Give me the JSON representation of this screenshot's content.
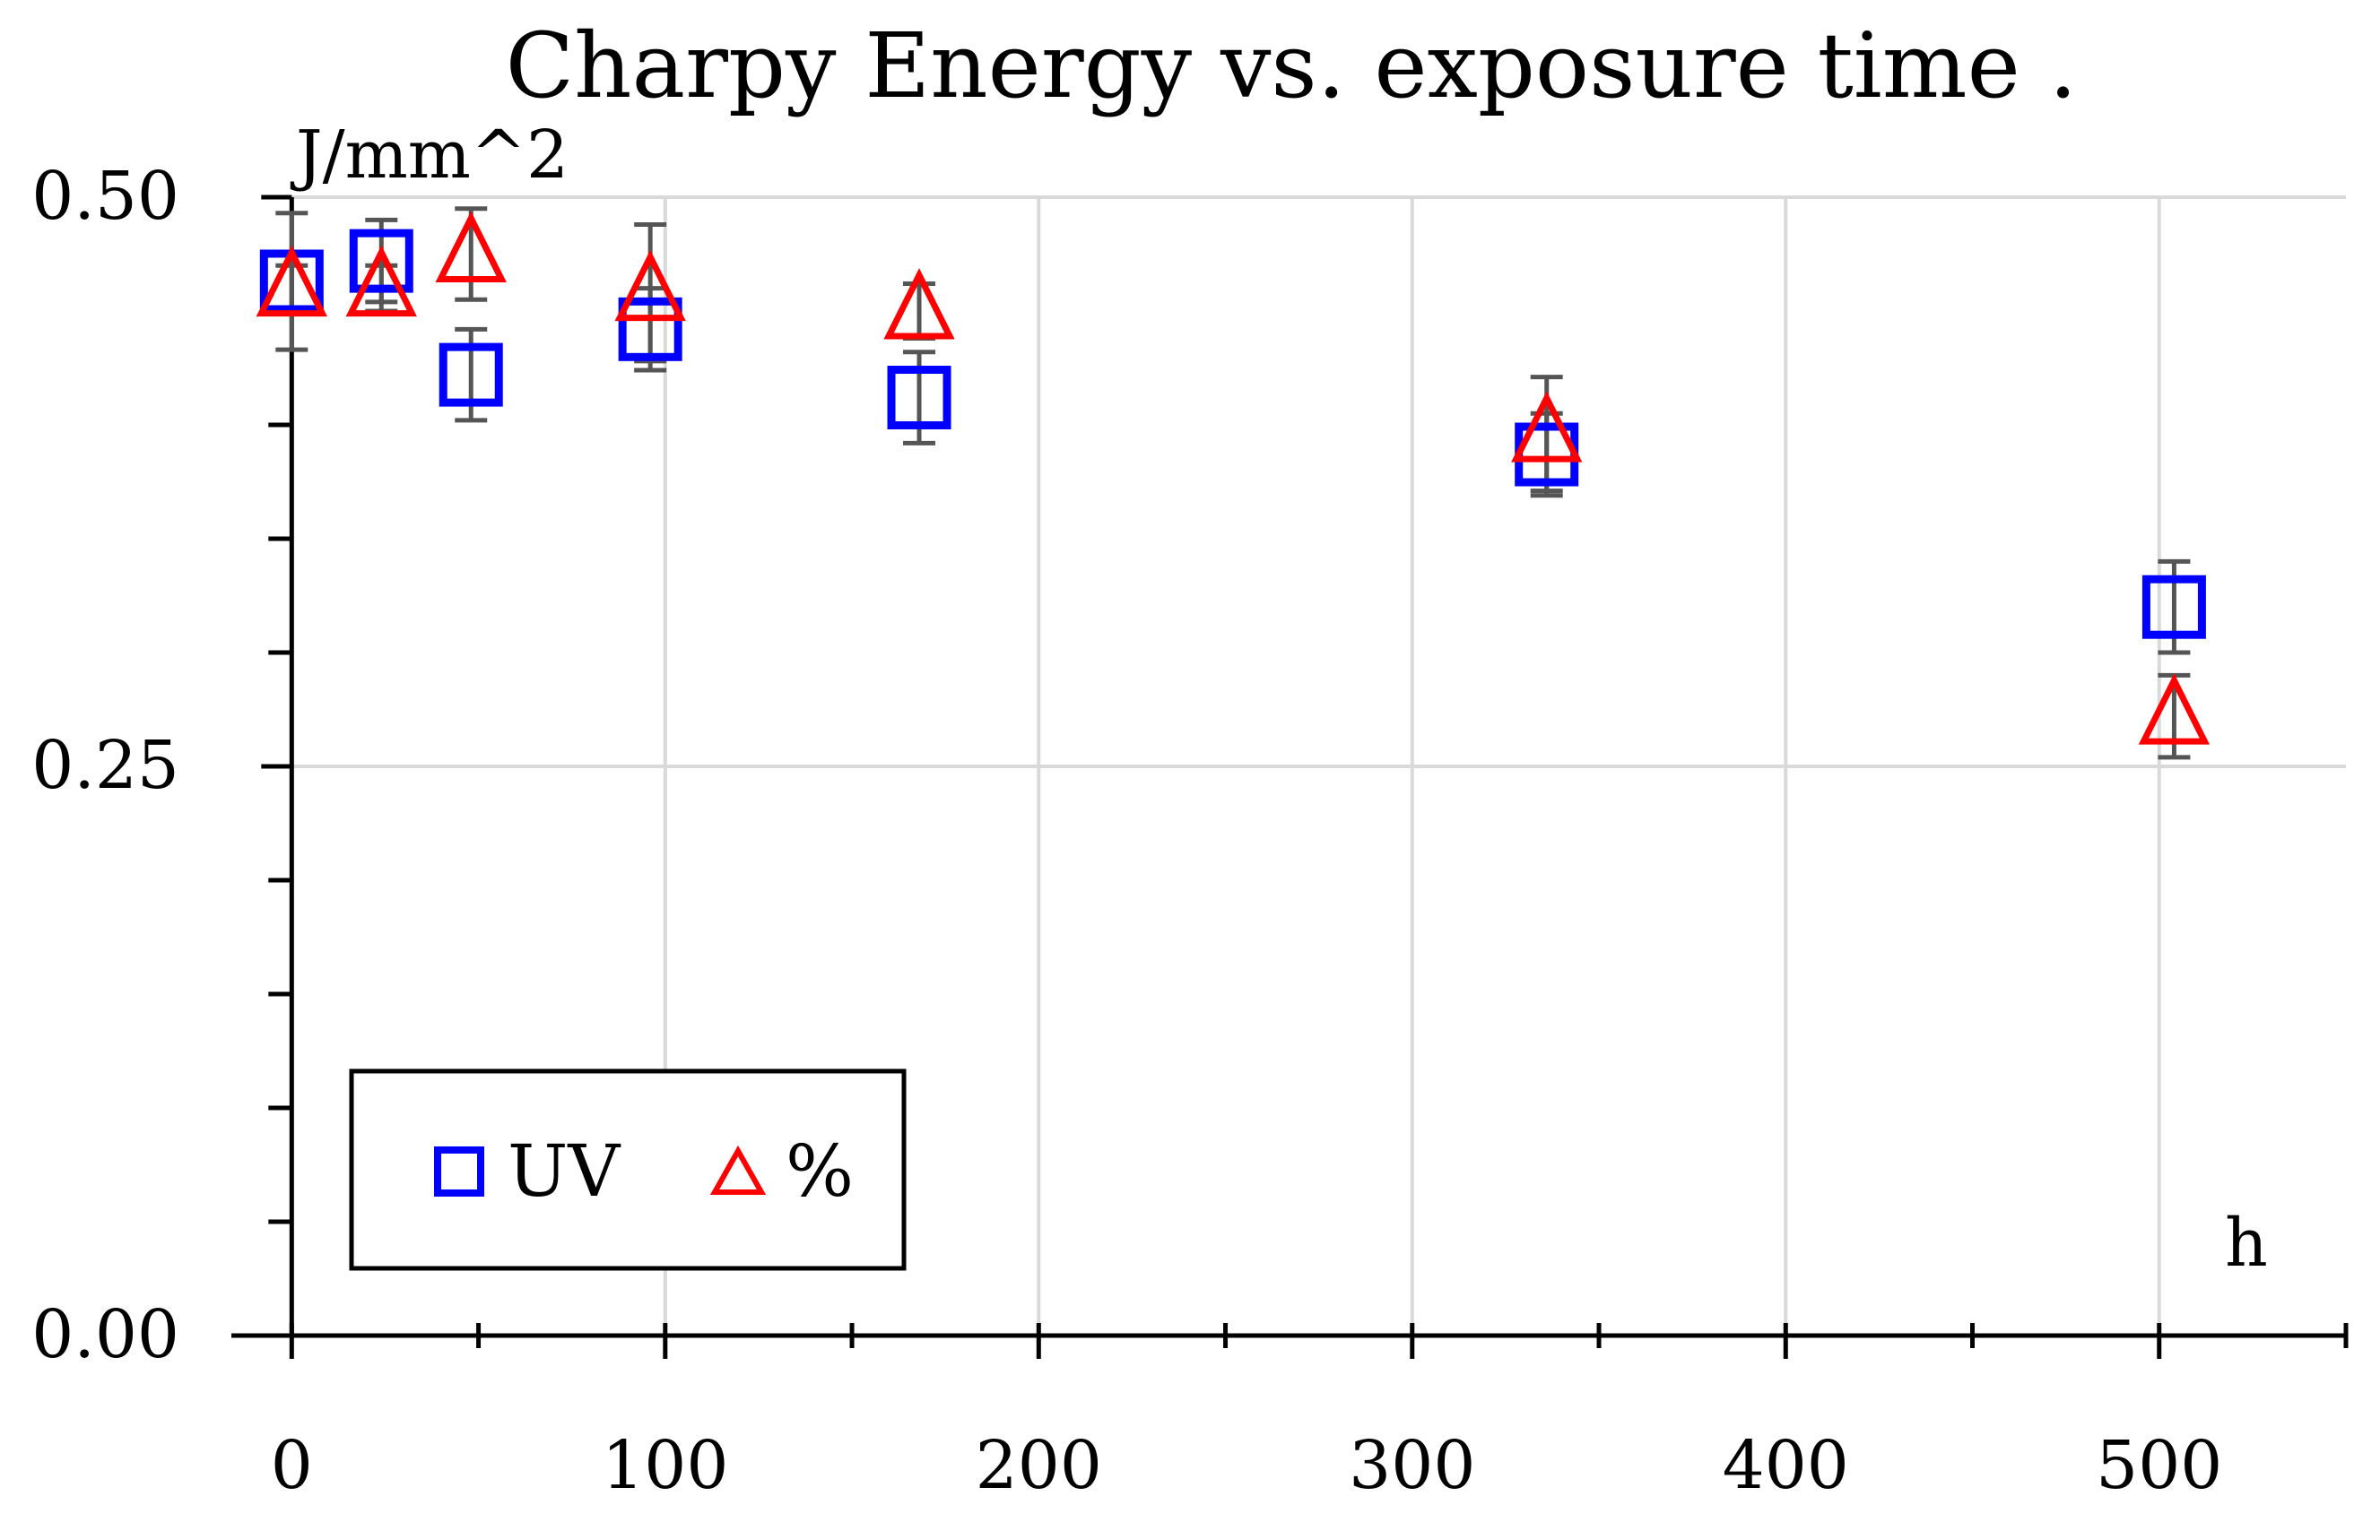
{
  "chart_data": {
    "type": "scatter",
    "title": "Charpy Energy vs. exposure time .",
    "xlabel": "h",
    "ylabel": "J/mm^2",
    "xlim": [
      -8,
      550
    ],
    "ylim": [
      0,
      0.5
    ],
    "x_ticks": [
      0,
      100,
      200,
      300,
      400,
      500
    ],
    "x_tick_labels": [
      "0",
      "100",
      "200",
      "300",
      "400",
      "500"
    ],
    "y_ticks": [
      0,
      0.25,
      0.5
    ],
    "y_tick_labels": [
      "0.00",
      "0.25",
      "0.50"
    ],
    "grid": true,
    "legend_position": "bottom-left",
    "series": [
      {
        "name": "UV",
        "marker": "square",
        "color": "#0000ff",
        "points": [
          {
            "x": 0,
            "y": 0.463,
            "err": 0.03
          },
          {
            "x": 24,
            "y": 0.472,
            "err": 0.018
          },
          {
            "x": 48,
            "y": 0.422,
            "err": 0.02
          },
          {
            "x": 96,
            "y": 0.442,
            "err": 0.018
          },
          {
            "x": 168,
            "y": 0.412,
            "err": 0.02
          },
          {
            "x": 336,
            "y": 0.387,
            "err": 0.018
          },
          {
            "x": 504,
            "y": 0.32,
            "err": 0.02
          }
        ]
      },
      {
        "name": "%",
        "marker": "triangle",
        "color": "#ff0000",
        "points": [
          {
            "x": 0,
            "y": 0.46,
            "err": 0.01
          },
          {
            "x": 24,
            "y": 0.46,
            "err": 0.01
          },
          {
            "x": 48,
            "y": 0.475,
            "err": 0.02
          },
          {
            "x": 96,
            "y": 0.458,
            "err": 0.03
          },
          {
            "x": 168,
            "y": 0.45,
            "err": 0.012
          },
          {
            "x": 336,
            "y": 0.396,
            "err": 0.025
          },
          {
            "x": 504,
            "y": 0.272,
            "err": 0.018
          }
        ]
      }
    ]
  }
}
